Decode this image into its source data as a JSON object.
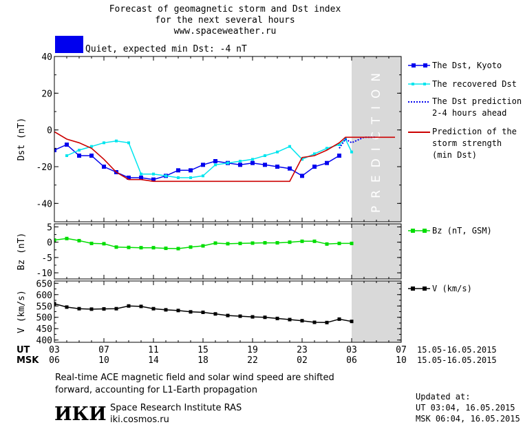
{
  "title_lines": [
    "Forecast of geomagnetic storm and Dst index",
    "for the next several hours",
    "www.spaceweather.ru"
  ],
  "status": {
    "text": "Quiet, expected min Dst: -4 nT",
    "color": "#0000ee"
  },
  "colors": {
    "kyoto": "#0000ee",
    "recovered": "#00e5ee",
    "prediction": "#0000ee",
    "storm": "#cc0000",
    "bz": "#00dd00",
    "v": "#000000",
    "prediction_band": "#d9d9d9",
    "prediction_text": "#ffffff"
  },
  "prediction_label": "PREDICTION",
  "x_axis": {
    "row_labels": [
      "UT",
      "MSK"
    ],
    "ut_ticks": [
      "03",
      "07",
      "11",
      "15",
      "19",
      "23",
      "03",
      "07"
    ],
    "msk_ticks": [
      "06",
      "10",
      "14",
      "18",
      "22",
      "02",
      "06",
      "10"
    ],
    "range_ut": "15.05-16.05.2015",
    "range_msk": "15.05-16.05.2015"
  },
  "chart_data": [
    {
      "type": "line",
      "ylabel": "Dst (nT)",
      "ylim": [
        -50,
        40
      ],
      "yticks": [
        "40",
        "20",
        "0",
        "-20",
        "-40"
      ],
      "xlim": [
        3,
        31
      ],
      "prediction_start": 26.5,
      "series": [
        {
          "name": "The Dst, Kyoto",
          "x": [
            3,
            4,
            5,
            6,
            7,
            8,
            9,
            10,
            11,
            12,
            13,
            14,
            15,
            16,
            17,
            18,
            19,
            20,
            21,
            22,
            23,
            24,
            25,
            26
          ],
          "values": [
            -11,
            -8,
            -14,
            -14,
            -20,
            -23,
            -26,
            -26,
            -27,
            -25,
            -22,
            -22,
            -19,
            -17,
            -18,
            -19,
            -18,
            -19,
            -20,
            -21,
            -25,
            -20,
            -18,
            -14
          ]
        },
        {
          "name": "The recovered Dst",
          "x": [
            4,
            5,
            6,
            7,
            8,
            9,
            10,
            11,
            12,
            13,
            14,
            15,
            16,
            17,
            18,
            19,
            20,
            21,
            22,
            23,
            24,
            25,
            26,
            26.5,
            27
          ],
          "values": [
            -14,
            -11,
            -9,
            -7,
            -6,
            -7,
            -24,
            -24,
            -25,
            -26,
            -26,
            -25,
            -19,
            -18,
            -17,
            -16,
            -14,
            -12,
            -9,
            -16,
            -13,
            -10,
            -8,
            -5,
            -12
          ]
        },
        {
          "name": "The Dst prediction\n2-4 hours ahead",
          "x": [
            26,
            26.5,
            27,
            28,
            29
          ],
          "values": [
            -10,
            -5,
            -7,
            -4,
            -4
          ]
        },
        {
          "name": "Prediction of the\nstorm strength\n(min Dst)",
          "x": [
            2.1,
            3,
            4,
            5,
            6,
            7,
            8,
            9,
            10,
            11,
            12,
            13,
            14,
            15,
            16,
            17,
            18,
            19,
            20,
            21,
            22,
            23,
            24,
            25,
            26,
            26.5,
            27,
            28,
            29,
            30.5
          ],
          "values": [
            -3,
            -1,
            -5,
            -7,
            -10,
            -16,
            -23,
            -27,
            -27,
            -28,
            -28,
            -28,
            -28,
            -28,
            -28,
            -28,
            -28,
            -28,
            -28,
            -28,
            -28,
            -15,
            -14,
            -11,
            -7,
            -4,
            -4,
            -4,
            -4,
            -4
          ]
        }
      ]
    },
    {
      "type": "line",
      "ylabel": "Bz (nT)",
      "ylim": [
        -12,
        6
      ],
      "yticks": [
        "5",
        "0",
        "-5",
        "-10"
      ],
      "xlim": [
        3,
        31
      ],
      "series": [
        {
          "name": "Bz (nT, GSM)",
          "x": [
            3,
            4,
            5,
            6,
            7,
            8,
            9,
            10,
            11,
            12,
            13,
            14,
            15,
            16,
            17,
            18,
            19,
            20,
            21,
            22,
            23,
            24,
            25,
            26,
            27
          ],
          "values": [
            0.7,
            1.2,
            0.5,
            -0.4,
            -0.5,
            -1.6,
            -1.7,
            -1.8,
            -1.8,
            -2.0,
            -2.1,
            -1.6,
            -1.2,
            -0.3,
            -0.5,
            -0.4,
            -0.3,
            -0.2,
            -0.2,
            0,
            0.3,
            0.3,
            -0.6,
            -0.4,
            -0.4
          ]
        }
      ]
    },
    {
      "type": "line",
      "ylabel": "V (km/s)",
      "ylim": [
        390,
        660
      ],
      "yticks": [
        "650",
        "600",
        "550",
        "500",
        "450",
        "400"
      ],
      "xlim": [
        3,
        31
      ],
      "series": [
        {
          "name": "V (km/s)",
          "x": [
            3,
            4,
            5,
            6,
            7,
            8,
            9,
            10,
            11,
            12,
            13,
            14,
            15,
            16,
            17,
            18,
            19,
            20,
            21,
            22,
            23,
            24,
            25,
            26,
            27
          ],
          "values": [
            560,
            545,
            538,
            536,
            537,
            538,
            550,
            548,
            538,
            533,
            530,
            524,
            522,
            515,
            508,
            505,
            502,
            500,
            495,
            490,
            485,
            478,
            477,
            492,
            482
          ]
        }
      ]
    }
  ],
  "legend": {
    "kyoto": "The Dst, Kyoto",
    "recovered": "The recovered Dst",
    "prediction": [
      "The Dst prediction",
      "2-4 hours ahead"
    ],
    "storm": [
      "Prediction of the",
      "storm strength",
      "(min Dst)"
    ],
    "bz": "Bz (nT, GSM)",
    "v": "V (km/s)"
  },
  "footer": {
    "note_lines": [
      "Real-time ACE magnetic field and solar wind speed are shifted",
      "forward, accounting for L1-Earth propagation"
    ],
    "logo": "ИКИ",
    "institute": "Space Research Institute RAS",
    "site": "iki.cosmos.ru",
    "updated_label": "Updated at:",
    "updated_ut": "UT  03:04, 16.05.2015",
    "updated_msk": "MSK 06:04, 16.05.2015"
  }
}
